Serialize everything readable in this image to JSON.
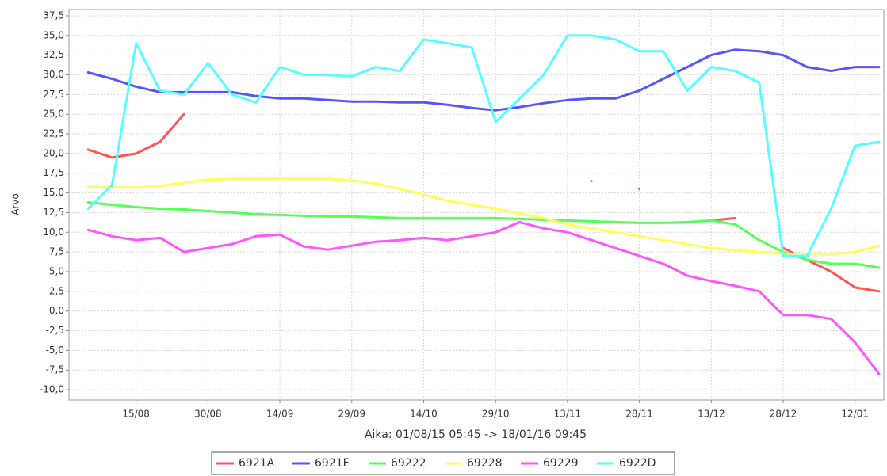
{
  "chart_data": {
    "type": "line",
    "x_label": "Aika: 01/08/15 05:45 -> 18/01/16 09:45",
    "y_label": "Arvo",
    "categories": [
      "05/08",
      "10/08",
      "15/08",
      "20/08",
      "25/08",
      "30/08",
      "04/09",
      "09/09",
      "14/09",
      "19/09",
      "24/09",
      "29/09",
      "04/10",
      "09/10",
      "14/10",
      "19/10",
      "24/10",
      "29/10",
      "03/11",
      "08/11",
      "13/11",
      "18/11",
      "23/11",
      "28/11",
      "03/12",
      "08/12",
      "13/12",
      "18/12",
      "23/12",
      "28/12",
      "02/01",
      "07/01",
      "12/01",
      "17/01"
    ],
    "xticks": [
      "15/08",
      "30/08",
      "14/09",
      "29/09",
      "14/10",
      "29/10",
      "13/11",
      "28/11",
      "13/12",
      "28/12",
      "12/01"
    ],
    "ylim": [
      -11.3,
      38.3
    ],
    "yticks": [
      {
        "value": 37.5,
        "label": "37,5"
      },
      {
        "value": 35,
        "label": "35,0"
      },
      {
        "value": 32.5,
        "label": "32,5"
      },
      {
        "value": 30,
        "label": "30,0"
      },
      {
        "value": 27.5,
        "label": "27,5"
      },
      {
        "value": 25,
        "label": "25,0"
      },
      {
        "value": 22.5,
        "label": "22,5"
      },
      {
        "value": 20,
        "label": "20,0"
      },
      {
        "value": 17.5,
        "label": "17,5"
      },
      {
        "value": 15,
        "label": "15,0"
      },
      {
        "value": 12.5,
        "label": "12,5"
      },
      {
        "value": 10,
        "label": "10,0"
      },
      {
        "value": 7.5,
        "label": "7,5"
      },
      {
        "value": 5,
        "label": "5,0"
      },
      {
        "value": 2.5,
        "label": "2,5"
      },
      {
        "value": 0,
        "label": "0,0"
      },
      {
        "value": -2.5,
        "label": "-2,5"
      },
      {
        "value": -5,
        "label": "-5,0"
      },
      {
        "value": -7.5,
        "label": "-7,5"
      },
      {
        "value": -10,
        "label": "-10,0"
      }
    ],
    "grid": true,
    "legend": "bottom",
    "series": [
      {
        "name": "6921A",
        "color": "#ff5555",
        "values": [
          20.5,
          19.5,
          20,
          21.5,
          25,
          null,
          null,
          null,
          null,
          null,
          null,
          null,
          null,
          null,
          null,
          null,
          null,
          null,
          null,
          null,
          null,
          16.5,
          null,
          15.5,
          null,
          null,
          11.5,
          11.8,
          null,
          8,
          6.5,
          5,
          3,
          2.5
        ]
      },
      {
        "name": "6921F",
        "color": "#5555ff",
        "values": [
          30.3,
          29.5,
          28.5,
          27.8,
          27.8,
          27.8,
          27.8,
          27.3,
          27,
          27,
          26.8,
          26.6,
          26.6,
          26.5,
          26.5,
          26.2,
          25.8,
          25.5,
          25.9,
          26.4,
          26.8,
          27,
          27,
          28,
          29.5,
          31,
          32.5,
          33.2,
          33,
          32.5,
          31,
          30.5,
          31,
          31
        ]
      },
      {
        "name": "69222",
        "color": "#55ff55",
        "values": [
          13.8,
          13.5,
          13.2,
          13,
          12.9,
          12.7,
          12.5,
          12.3,
          12.2,
          12.1,
          12,
          12,
          11.9,
          11.8,
          11.8,
          11.8,
          11.8,
          11.8,
          11.7,
          11.6,
          11.5,
          11.4,
          11.3,
          11.2,
          11.2,
          11.3,
          11.5,
          11,
          9,
          7.5,
          6.5,
          6,
          6,
          5.5
        ]
      },
      {
        "name": "69228",
        "color": "#ffff55",
        "values": [
          15.8,
          15.7,
          15.7,
          15.9,
          16.3,
          16.7,
          16.8,
          16.8,
          16.8,
          16.8,
          16.8,
          16.6,
          16.2,
          15.5,
          14.8,
          14,
          13.5,
          13,
          12.4,
          11.8,
          11,
          10.5,
          10,
          9.5,
          9,
          8.5,
          8,
          7.7,
          7.5,
          7.3,
          7.2,
          7.2,
          7.5,
          8.3
        ]
      },
      {
        "name": "69229",
        "color": "#ff55ff",
        "values": [
          10.3,
          9.5,
          9,
          9.3,
          7.5,
          8,
          8.5,
          9.5,
          9.7,
          8.2,
          7.8,
          8.3,
          8.8,
          9,
          9.3,
          9,
          9.5,
          10,
          11.3,
          10.5,
          10,
          9,
          8,
          7,
          6,
          4.5,
          3.8,
          3.2,
          2.5,
          -0.5,
          -0.5,
          -1,
          -4,
          -8
        ]
      },
      {
        "name": "6922D",
        "color": "#55ffff",
        "values": [
          13,
          16,
          34,
          28,
          27.5,
          31.5,
          27.5,
          26.5,
          31,
          30,
          30,
          29.8,
          31,
          30.5,
          34.5,
          34,
          33.5,
          24,
          27,
          30,
          35,
          35,
          34.5,
          33,
          33,
          28,
          31,
          30.5,
          29,
          7,
          7,
          13,
          21,
          21.5
        ]
      }
    ]
  }
}
